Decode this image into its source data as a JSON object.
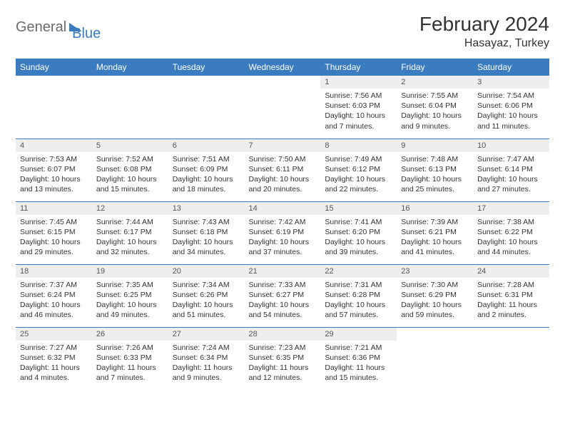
{
  "brand": {
    "part1": "General",
    "part2": "Blue"
  },
  "title": "February 2024",
  "location": "Hasayaz, Turkey",
  "colors": {
    "header_bg": "#3b7bbf",
    "header_text": "#ffffff",
    "daynum_bg": "#eeeeee",
    "rule": "#3b7bbf",
    "body_text": "#333333",
    "logo_gray": "#6b6b6b",
    "logo_blue": "#3b7bbf"
  },
  "weekdays": [
    "Sunday",
    "Monday",
    "Tuesday",
    "Wednesday",
    "Thursday",
    "Friday",
    "Saturday"
  ],
  "weeks": [
    [
      {
        "blank": true
      },
      {
        "blank": true
      },
      {
        "blank": true
      },
      {
        "blank": true
      },
      {
        "n": "1",
        "sr": "Sunrise: 7:56 AM",
        "ss": "Sunset: 6:03 PM",
        "d1": "Daylight: 10 hours",
        "d2": "and 7 minutes."
      },
      {
        "n": "2",
        "sr": "Sunrise: 7:55 AM",
        "ss": "Sunset: 6:04 PM",
        "d1": "Daylight: 10 hours",
        "d2": "and 9 minutes."
      },
      {
        "n": "3",
        "sr": "Sunrise: 7:54 AM",
        "ss": "Sunset: 6:06 PM",
        "d1": "Daylight: 10 hours",
        "d2": "and 11 minutes."
      }
    ],
    [
      {
        "n": "4",
        "sr": "Sunrise: 7:53 AM",
        "ss": "Sunset: 6:07 PM",
        "d1": "Daylight: 10 hours",
        "d2": "and 13 minutes."
      },
      {
        "n": "5",
        "sr": "Sunrise: 7:52 AM",
        "ss": "Sunset: 6:08 PM",
        "d1": "Daylight: 10 hours",
        "d2": "and 15 minutes."
      },
      {
        "n": "6",
        "sr": "Sunrise: 7:51 AM",
        "ss": "Sunset: 6:09 PM",
        "d1": "Daylight: 10 hours",
        "d2": "and 18 minutes."
      },
      {
        "n": "7",
        "sr": "Sunrise: 7:50 AM",
        "ss": "Sunset: 6:11 PM",
        "d1": "Daylight: 10 hours",
        "d2": "and 20 minutes."
      },
      {
        "n": "8",
        "sr": "Sunrise: 7:49 AM",
        "ss": "Sunset: 6:12 PM",
        "d1": "Daylight: 10 hours",
        "d2": "and 22 minutes."
      },
      {
        "n": "9",
        "sr": "Sunrise: 7:48 AM",
        "ss": "Sunset: 6:13 PM",
        "d1": "Daylight: 10 hours",
        "d2": "and 25 minutes."
      },
      {
        "n": "10",
        "sr": "Sunrise: 7:47 AM",
        "ss": "Sunset: 6:14 PM",
        "d1": "Daylight: 10 hours",
        "d2": "and 27 minutes."
      }
    ],
    [
      {
        "n": "11",
        "sr": "Sunrise: 7:45 AM",
        "ss": "Sunset: 6:15 PM",
        "d1": "Daylight: 10 hours",
        "d2": "and 29 minutes."
      },
      {
        "n": "12",
        "sr": "Sunrise: 7:44 AM",
        "ss": "Sunset: 6:17 PM",
        "d1": "Daylight: 10 hours",
        "d2": "and 32 minutes."
      },
      {
        "n": "13",
        "sr": "Sunrise: 7:43 AM",
        "ss": "Sunset: 6:18 PM",
        "d1": "Daylight: 10 hours",
        "d2": "and 34 minutes."
      },
      {
        "n": "14",
        "sr": "Sunrise: 7:42 AM",
        "ss": "Sunset: 6:19 PM",
        "d1": "Daylight: 10 hours",
        "d2": "and 37 minutes."
      },
      {
        "n": "15",
        "sr": "Sunrise: 7:41 AM",
        "ss": "Sunset: 6:20 PM",
        "d1": "Daylight: 10 hours",
        "d2": "and 39 minutes."
      },
      {
        "n": "16",
        "sr": "Sunrise: 7:39 AM",
        "ss": "Sunset: 6:21 PM",
        "d1": "Daylight: 10 hours",
        "d2": "and 41 minutes."
      },
      {
        "n": "17",
        "sr": "Sunrise: 7:38 AM",
        "ss": "Sunset: 6:22 PM",
        "d1": "Daylight: 10 hours",
        "d2": "and 44 minutes."
      }
    ],
    [
      {
        "n": "18",
        "sr": "Sunrise: 7:37 AM",
        "ss": "Sunset: 6:24 PM",
        "d1": "Daylight: 10 hours",
        "d2": "and 46 minutes."
      },
      {
        "n": "19",
        "sr": "Sunrise: 7:35 AM",
        "ss": "Sunset: 6:25 PM",
        "d1": "Daylight: 10 hours",
        "d2": "and 49 minutes."
      },
      {
        "n": "20",
        "sr": "Sunrise: 7:34 AM",
        "ss": "Sunset: 6:26 PM",
        "d1": "Daylight: 10 hours",
        "d2": "and 51 minutes."
      },
      {
        "n": "21",
        "sr": "Sunrise: 7:33 AM",
        "ss": "Sunset: 6:27 PM",
        "d1": "Daylight: 10 hours",
        "d2": "and 54 minutes."
      },
      {
        "n": "22",
        "sr": "Sunrise: 7:31 AM",
        "ss": "Sunset: 6:28 PM",
        "d1": "Daylight: 10 hours",
        "d2": "and 57 minutes."
      },
      {
        "n": "23",
        "sr": "Sunrise: 7:30 AM",
        "ss": "Sunset: 6:29 PM",
        "d1": "Daylight: 10 hours",
        "d2": "and 59 minutes."
      },
      {
        "n": "24",
        "sr": "Sunrise: 7:28 AM",
        "ss": "Sunset: 6:31 PM",
        "d1": "Daylight: 11 hours",
        "d2": "and 2 minutes."
      }
    ],
    [
      {
        "n": "25",
        "sr": "Sunrise: 7:27 AM",
        "ss": "Sunset: 6:32 PM",
        "d1": "Daylight: 11 hours",
        "d2": "and 4 minutes."
      },
      {
        "n": "26",
        "sr": "Sunrise: 7:26 AM",
        "ss": "Sunset: 6:33 PM",
        "d1": "Daylight: 11 hours",
        "d2": "and 7 minutes."
      },
      {
        "n": "27",
        "sr": "Sunrise: 7:24 AM",
        "ss": "Sunset: 6:34 PM",
        "d1": "Daylight: 11 hours",
        "d2": "and 9 minutes."
      },
      {
        "n": "28",
        "sr": "Sunrise: 7:23 AM",
        "ss": "Sunset: 6:35 PM",
        "d1": "Daylight: 11 hours",
        "d2": "and 12 minutes."
      },
      {
        "n": "29",
        "sr": "Sunrise: 7:21 AM",
        "ss": "Sunset: 6:36 PM",
        "d1": "Daylight: 11 hours",
        "d2": "and 15 minutes."
      },
      {
        "blank": true
      },
      {
        "blank": true
      }
    ]
  ]
}
